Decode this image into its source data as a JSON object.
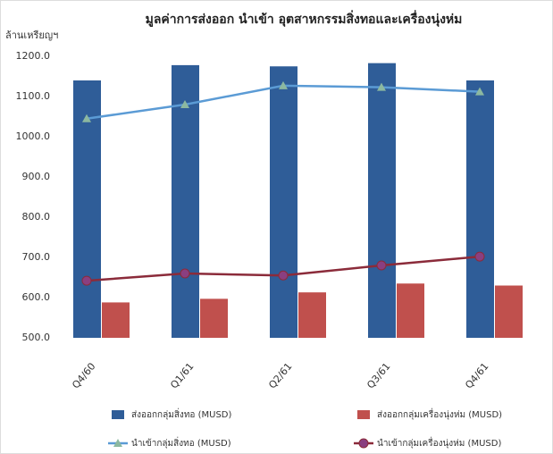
{
  "chart_data": {
    "type": "bar",
    "title": "มูลค่าการส่งออก นำเข้า อุตสาหกรรมสิ่งทอและเครื่องนุ่งห่ม",
    "ylabel": "ล้านเหรียญฯ",
    "categories": [
      "Q4/60",
      "Q1/61",
      "Q2/61",
      "Q3/61",
      "Q4/61"
    ],
    "series": [
      {
        "name": "ส่งออกกลุ่มสิ่งทอ (MUSD)",
        "type": "bar",
        "color": "#2f5d98",
        "values": [
          1140,
          1178,
          1175,
          1183,
          1140
        ]
      },
      {
        "name": "ส่งออกกลุ่มเครื่องนุ่งห่ม (MUSD)",
        "type": "bar",
        "color": "#c0504d",
        "values": [
          588,
          597,
          613,
          635,
          630
        ]
      },
      {
        "name": "นำเข้ากลุ่มสิ่งทอ (MUSD)",
        "type": "line",
        "marker": "triangle",
        "color": "#5b9bd5",
        "marker_color": "#8cb8a0",
        "values": [
          1045,
          1080,
          1127,
          1123,
          1112
        ]
      },
      {
        "name": "นำเข้ากลุ่มเครื่องนุ่งห่ม (MUSD)",
        "type": "line",
        "marker": "circle",
        "color": "#8b2b3a",
        "marker_color": "#8a3f80",
        "values": [
          642,
          660,
          655,
          680,
          702
        ]
      }
    ],
    "ylim": [
      500,
      1200
    ],
    "yticks": [
      {
        "value": 500,
        "label": "500.0"
      },
      {
        "value": 600,
        "label": "600.0"
      },
      {
        "value": 700,
        "label": "700.0"
      },
      {
        "value": 800,
        "label": "800.0"
      },
      {
        "value": 900,
        "label": "900.0"
      },
      {
        "value": 1000,
        "label": "1000.0"
      },
      {
        "value": 1100,
        "label": "1100.0"
      },
      {
        "value": 1200,
        "label": "1200.0"
      }
    ],
    "grid": false,
    "legend": "bottom"
  }
}
